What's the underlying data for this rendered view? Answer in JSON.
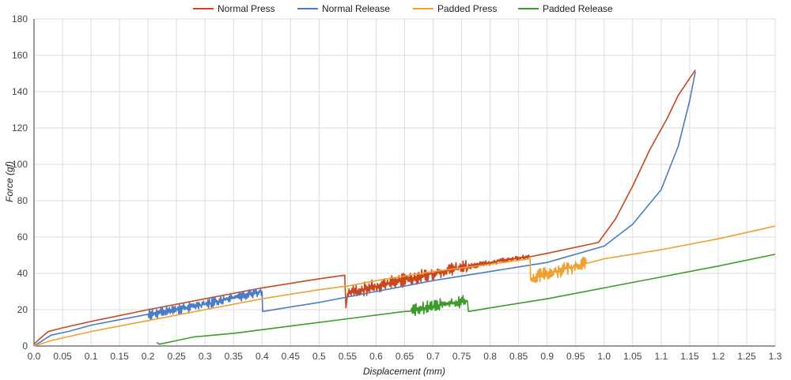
{
  "chart_data": {
    "type": "line",
    "title": "",
    "xlabel": "Displacement (mm)",
    "ylabel": "Force (gf)",
    "xlim": [
      0,
      1.3
    ],
    "ylim": [
      0,
      180
    ],
    "x_ticks": [
      "0.0",
      "0.05",
      "0.1",
      "0.15",
      "0.2",
      "0.25",
      "0.3",
      "0.35",
      "0.4",
      "0.45",
      "0.5",
      "0.55",
      "0.6",
      "0.65",
      "0.7",
      "0.75",
      "0.8",
      "0.85",
      "0.9",
      "0.95",
      "1.0",
      "1.05",
      "1.1",
      "1.15",
      "1.2",
      "1.25",
      "1.3"
    ],
    "y_ticks": [
      "0",
      "20",
      "40",
      "60",
      "80",
      "100",
      "120",
      "140",
      "160",
      "180"
    ],
    "grid": true,
    "legend": "top",
    "series": [
      {
        "name": "Normal Press",
        "color": "#c9461e",
        "points": [
          [
            0.0,
            1
          ],
          [
            0.01,
            4
          ],
          [
            0.025,
            8
          ],
          [
            0.05,
            10
          ],
          [
            0.1,
            13.5
          ],
          [
            0.2,
            20
          ],
          [
            0.3,
            26
          ],
          [
            0.4,
            32
          ],
          [
            0.5,
            37
          ],
          [
            0.545,
            39
          ],
          [
            0.547,
            21
          ],
          [
            0.55,
            29
          ],
          [
            0.6,
            33
          ],
          [
            0.7,
            40
          ],
          [
            0.8,
            46
          ],
          [
            0.9,
            51
          ],
          [
            0.99,
            57
          ],
          [
            1.02,
            70
          ],
          [
            1.05,
            88
          ],
          [
            1.08,
            108
          ],
          [
            1.11,
            125
          ],
          [
            1.13,
            138
          ],
          [
            1.16,
            152
          ]
        ],
        "noise": [
          [
            0.55,
            0.76,
            8
          ],
          [
            0.76,
            0.87,
            3
          ]
        ]
      },
      {
        "name": "Normal Release",
        "color": "#4c7cc4",
        "points": [
          [
            0.0,
            0
          ],
          [
            0.01,
            2
          ],
          [
            0.03,
            6
          ],
          [
            0.06,
            8
          ],
          [
            0.1,
            11.5
          ],
          [
            0.2,
            17.5
          ],
          [
            0.3,
            23
          ],
          [
            0.4,
            30
          ],
          [
            0.401,
            19
          ],
          [
            0.5,
            24
          ],
          [
            0.6,
            30
          ],
          [
            0.7,
            36
          ],
          [
            0.8,
            41
          ],
          [
            0.9,
            46
          ],
          [
            1.0,
            55
          ],
          [
            1.05,
            67
          ],
          [
            1.1,
            86
          ],
          [
            1.13,
            110
          ],
          [
            1.15,
            135
          ],
          [
            1.16,
            151
          ]
        ],
        "noise": [
          [
            0.2,
            0.4,
            6
          ]
        ]
      },
      {
        "name": "Padded Press",
        "color": "#f0a030",
        "points": [
          [
            0.0,
            0
          ],
          [
            0.03,
            3
          ],
          [
            0.1,
            8
          ],
          [
            0.2,
            14
          ],
          [
            0.3,
            20
          ],
          [
            0.4,
            26
          ],
          [
            0.5,
            31
          ],
          [
            0.55,
            33
          ],
          [
            0.6,
            36
          ],
          [
            0.7,
            41
          ],
          [
            0.8,
            45
          ],
          [
            0.87,
            48
          ],
          [
            0.871,
            37
          ],
          [
            0.9,
            40
          ],
          [
            1.0,
            48
          ],
          [
            1.1,
            53
          ],
          [
            1.2,
            59
          ],
          [
            1.3,
            66
          ]
        ],
        "noise": [
          [
            0.87,
            0.97,
            8
          ]
        ]
      },
      {
        "name": "Padded Release",
        "color": "#3f9a2e",
        "points": [
          [
            0.215,
            2
          ],
          [
            0.22,
            1
          ],
          [
            0.25,
            3
          ],
          [
            0.28,
            5
          ],
          [
            0.35,
            7
          ],
          [
            0.45,
            11
          ],
          [
            0.55,
            15
          ],
          [
            0.65,
            19
          ],
          [
            0.7,
            22
          ],
          [
            0.76,
            25
          ],
          [
            0.762,
            19
          ],
          [
            0.8,
            21
          ],
          [
            0.9,
            26
          ],
          [
            1.0,
            32
          ],
          [
            1.1,
            38
          ],
          [
            1.2,
            44
          ],
          [
            1.3,
            50.5
          ]
        ],
        "noise": [
          [
            0.66,
            0.76,
            7
          ]
        ]
      }
    ]
  }
}
